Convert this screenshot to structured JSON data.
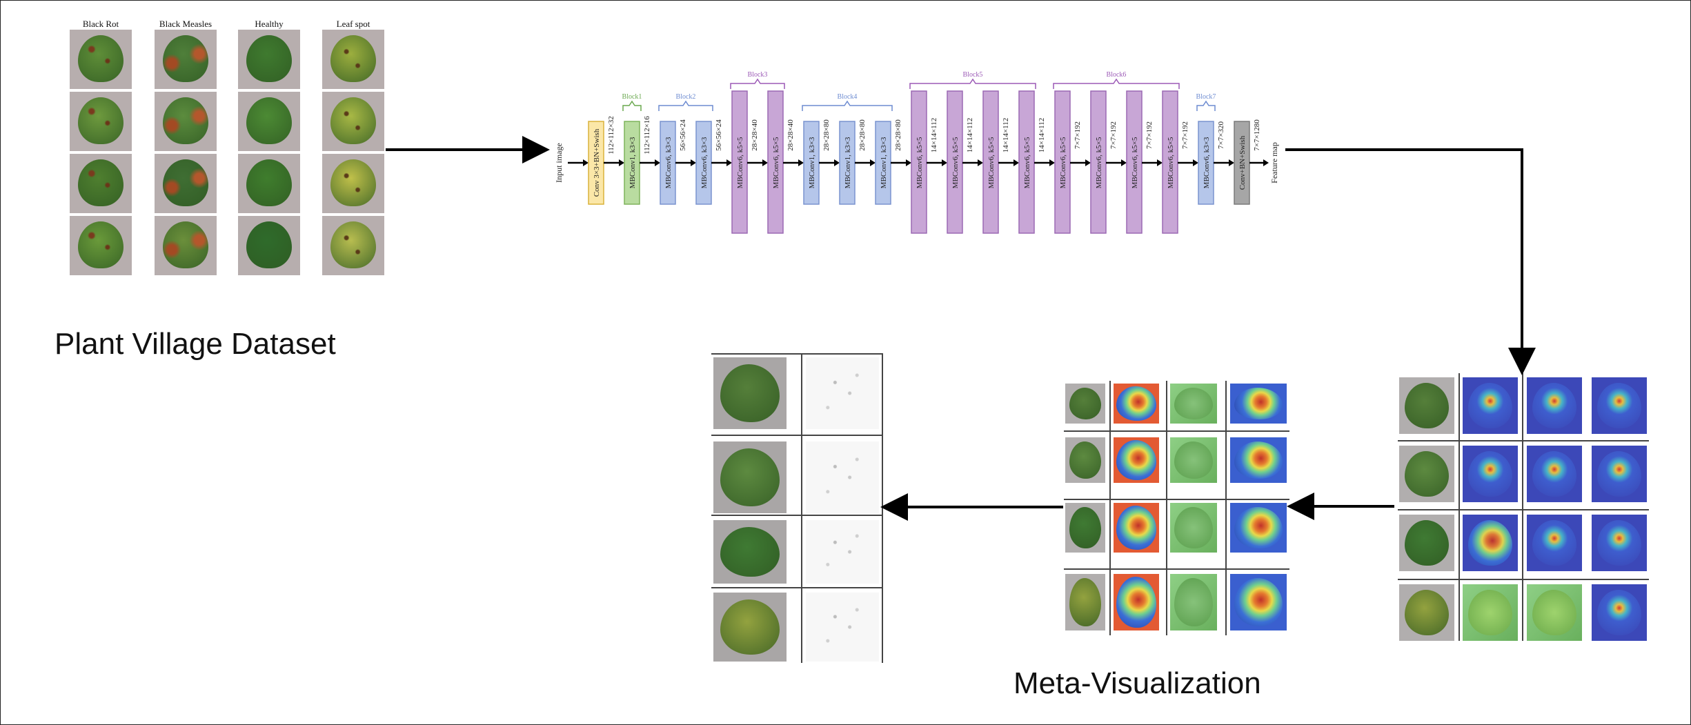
{
  "dataset": {
    "title": "Plant Village Dataset",
    "classes": [
      "Black Rot",
      "Black Measles",
      "Healthy",
      "Leaf spot"
    ],
    "images": "grape-leaf-photos"
  },
  "architecture": {
    "input_label": "Input image",
    "output_label": "Feature map",
    "stem": {
      "label": "Conv 3×3+BN+Swish",
      "out": "112×112×32"
    },
    "final": {
      "label": "Conv+BN+Swish",
      "out": "7×7×1280"
    },
    "blocks": [
      {
        "name": "Block1",
        "color": "green",
        "layers": [
          {
            "label": "MBConv1, k3×3",
            "out": "112×112×16"
          }
        ]
      },
      {
        "name": "Block2",
        "color": "blue",
        "layers": [
          {
            "label": "MBConv6, k3×3",
            "out": "56×56×24"
          },
          {
            "label": "MBConv6, k3×3",
            "out": "56×56×24"
          }
        ]
      },
      {
        "name": "Block3",
        "color": "purple",
        "layers": [
          {
            "label": "MBConv6, k5×5",
            "out": "28×28×40"
          },
          {
            "label": "MBConv6, k5×5",
            "out": "28×28×40"
          }
        ]
      },
      {
        "name": "Block4",
        "color": "blue",
        "layers": [
          {
            "label": "MBConv1, k3×3",
            "out": "28×28×80"
          },
          {
            "label": "MBConv1, k3×3",
            "out": "28×28×80"
          },
          {
            "label": "MBConv1, k3×3",
            "out": "28×28×80"
          }
        ]
      },
      {
        "name": "Block5",
        "color": "purple",
        "layers": [
          {
            "label": "MBConv6, k5×5",
            "out": "14×14×112"
          },
          {
            "label": "MBConv6, k5×5",
            "out": "14×14×112"
          },
          {
            "label": "MBConv6, k5×5",
            "out": "14×14×112"
          },
          {
            "label": "MBConv6, k5×5",
            "out": "14×14×112"
          }
        ]
      },
      {
        "name": "Block6",
        "color": "purple",
        "layers": [
          {
            "label": "MBConv6, k5×5",
            "out": "7×7×192"
          },
          {
            "label": "MBConv6, k5×5",
            "out": "7×7×192"
          },
          {
            "label": "MBConv6, k5×5",
            "out": "7×7×192"
          },
          {
            "label": "MBConv6, k5×5",
            "out": "7×7×192"
          }
        ]
      },
      {
        "name": "Block7",
        "color": "blue",
        "layers": [
          {
            "label": "MBConv6, k3×3",
            "out": "7×7×320"
          }
        ]
      }
    ],
    "colors": {
      "stem": "#fbe7a8",
      "stem_border": "#d9b23a",
      "green": "#b9dca0",
      "green_border": "#7fb35c",
      "blue": "#b5c6ea",
      "blue_border": "#7a93cf",
      "purple": "#c8a6d6",
      "purple_border": "#9b69b3",
      "gray": "#a6a6a6",
      "gray_border": "#7a7a7a",
      "block_label_green": "#6aa84f",
      "block_label_blue": "#6d8bd1",
      "block_label_purple": "#9b59b6"
    }
  },
  "meta_title": "Meta-Visualization"
}
